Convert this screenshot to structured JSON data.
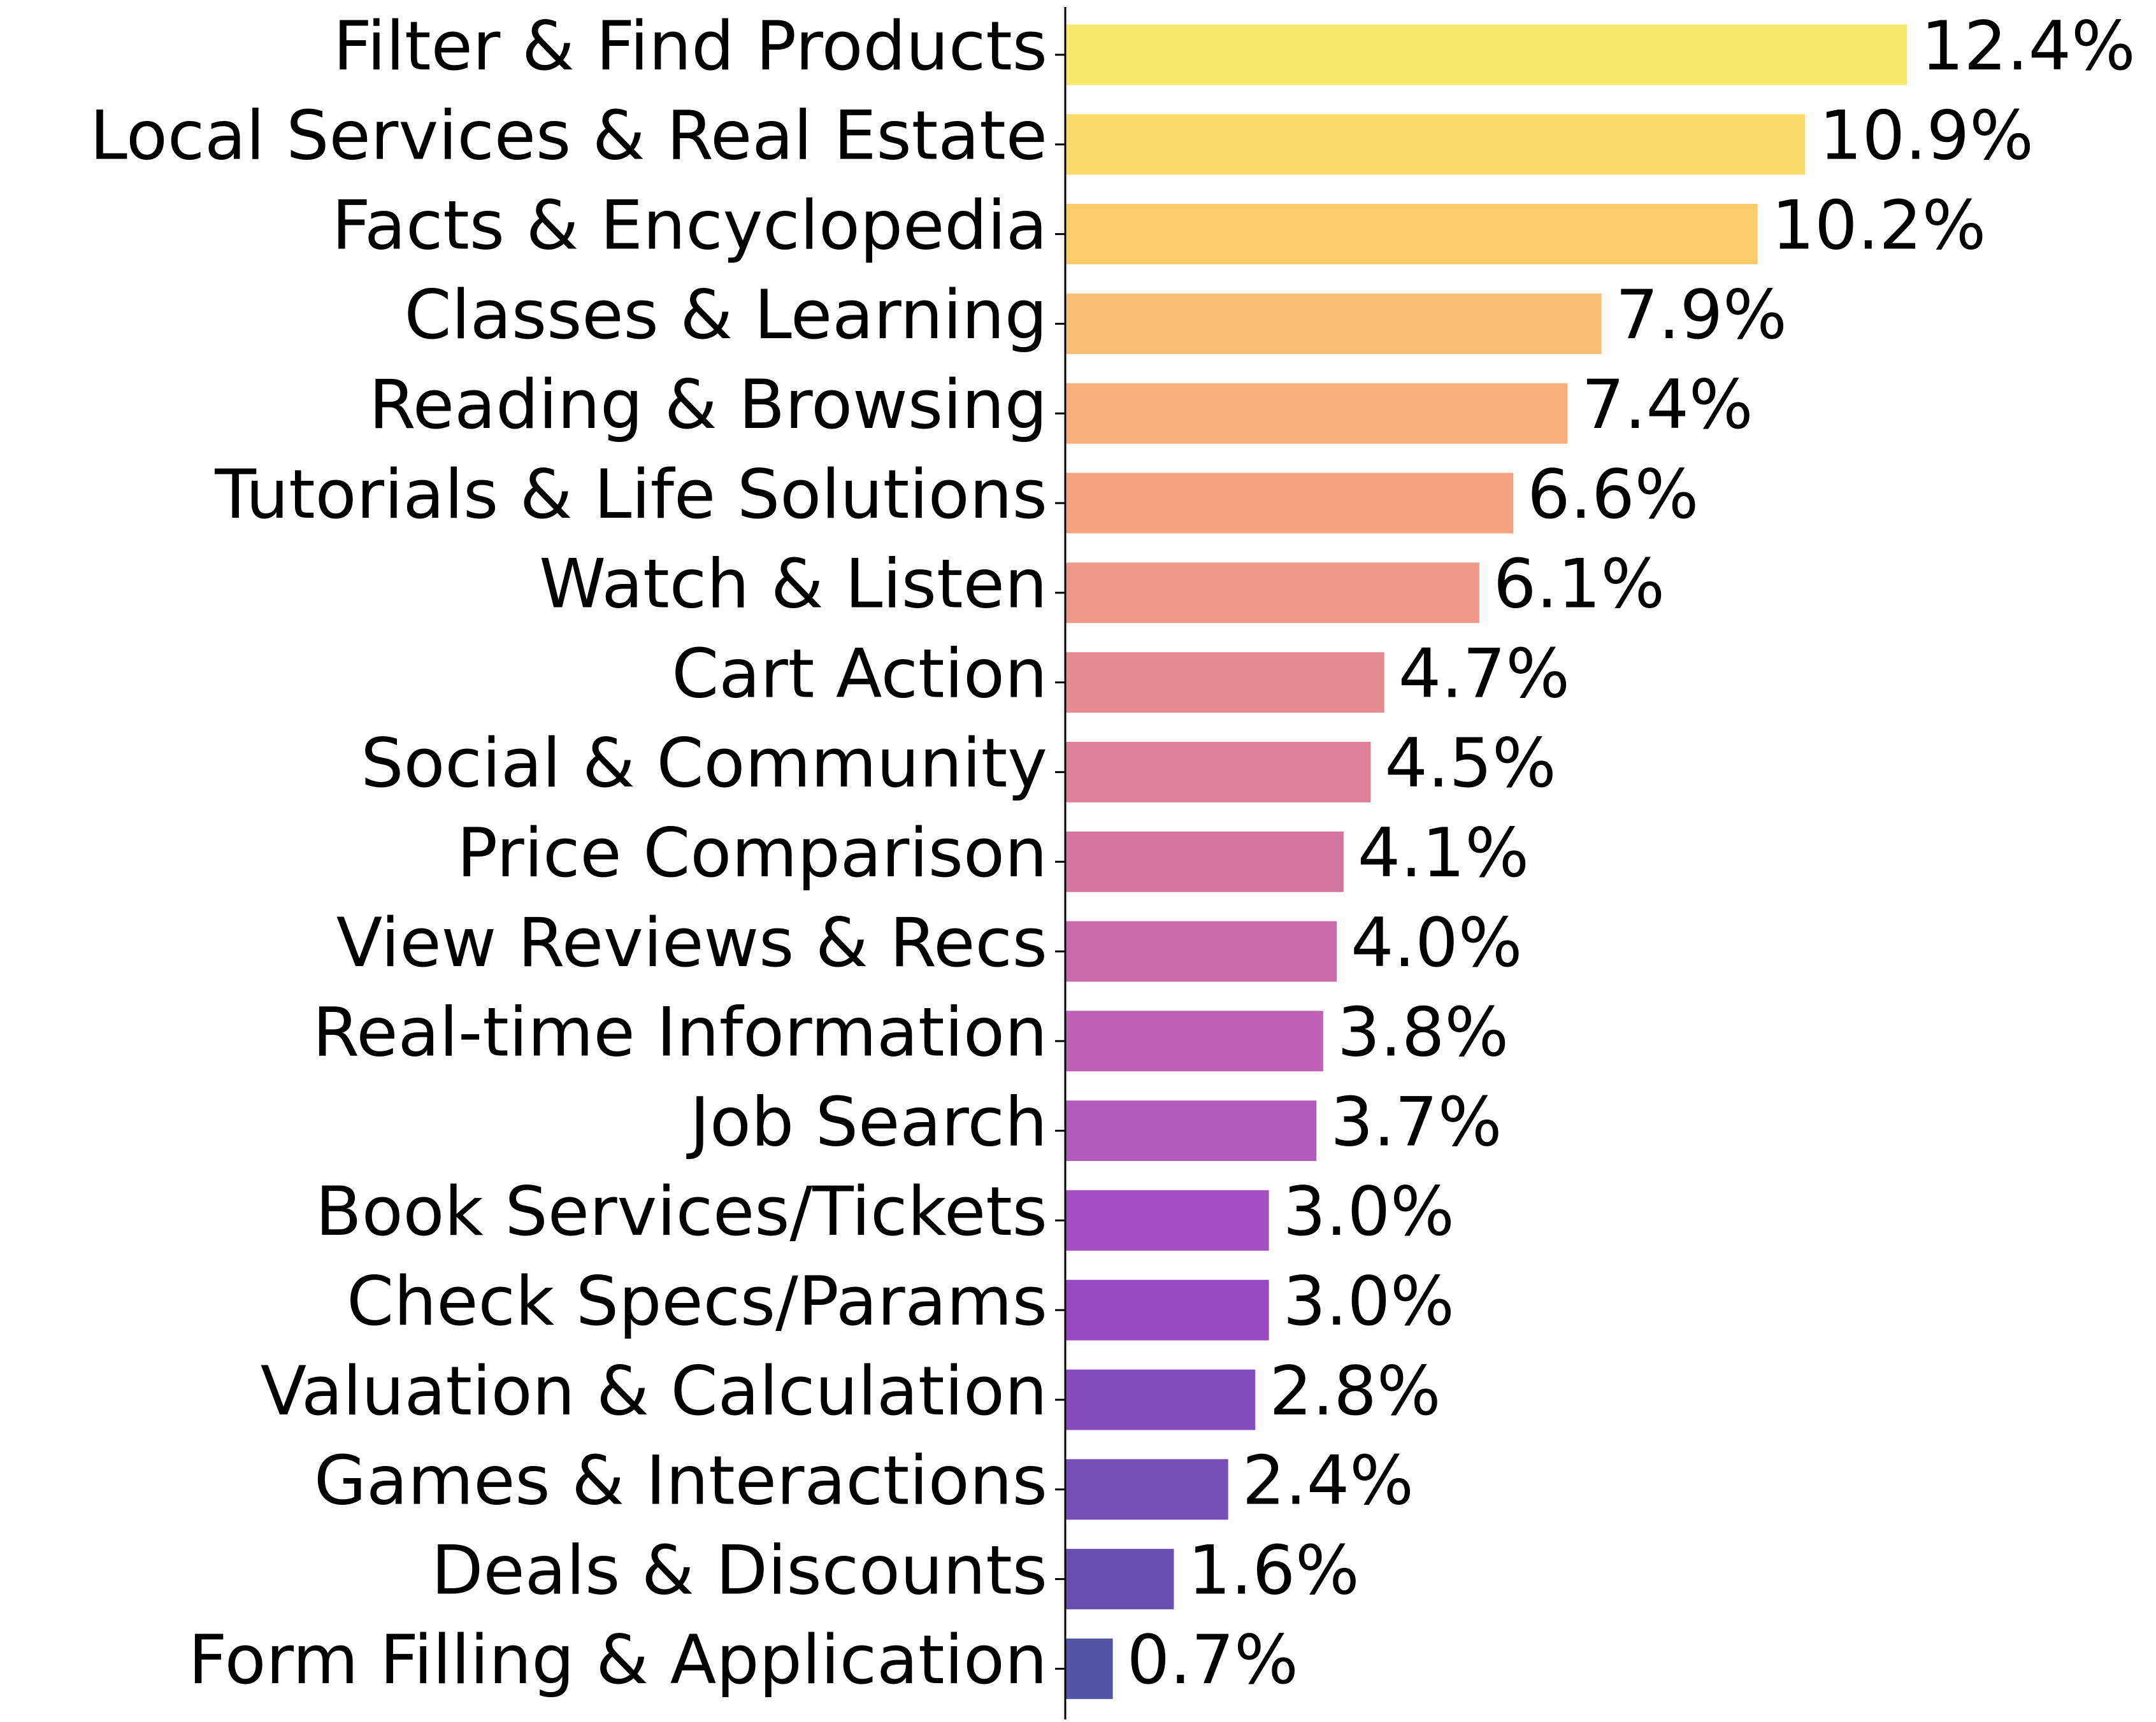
{
  "chart_data": {
    "type": "barh",
    "categories": [
      "Filter & Find Products",
      "Local Services & Real Estate",
      "Facts & Encyclopedia",
      "Classes & Learning",
      "Reading & Browsing",
      "Tutorials & Life Solutions",
      "Watch & Listen",
      "Cart Action",
      "Social & Community",
      "Price Comparison",
      "View Reviews & Recs",
      "Real-time Information",
      "Job Search",
      "Book Services/Tickets",
      "Check Specs/Params",
      "Valuation & Calculation",
      "Games & Interactions",
      "Deals & Discounts",
      "Form Filling & Application"
    ],
    "values": [
      12.4,
      10.9,
      10.2,
      7.9,
      7.4,
      6.6,
      6.1,
      4.7,
      4.5,
      4.1,
      4.0,
      3.8,
      3.7,
      3.0,
      3.0,
      2.8,
      2.4,
      1.6,
      0.7
    ],
    "value_labels": [
      "12.4%",
      "10.9%",
      "10.2%",
      "7.9%",
      "7.4%",
      "6.6%",
      "6.1%",
      "4.7%",
      "4.5%",
      "4.1%",
      "4.0%",
      "3.8%",
      "3.7%",
      "3.0%",
      "3.0%",
      "2.8%",
      "2.4%",
      "1.6%",
      "0.7%"
    ],
    "colors": [
      "#f7e968",
      "#fadb6b",
      "#fccb6c",
      "#fbbd73",
      "#f9b07a",
      "#f5a37f",
      "#ee9889",
      "#e68b91",
      "#de8097",
      "#d475a0",
      "#c96aab",
      "#bf62b6",
      "#b35abd",
      "#a64fc2",
      "#9749c3",
      "#864cbd",
      "#784db8",
      "#6a4fb1",
      "#5454a7"
    ]
  }
}
